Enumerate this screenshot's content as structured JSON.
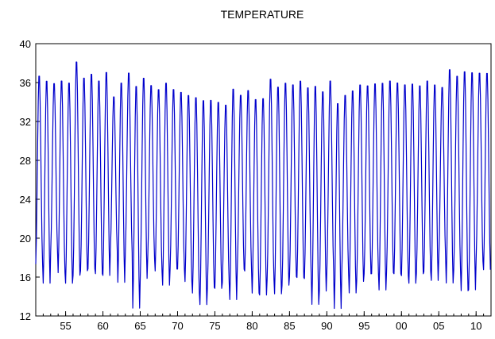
{
  "chart_data": {
    "type": "line",
    "title": "TEMPERATURE",
    "xlabel": "",
    "ylabel": "",
    "x_domain": [
      1951,
      2012
    ],
    "x_ticks": [
      1955,
      1960,
      1965,
      1970,
      1975,
      1980,
      1985,
      1990,
      1995,
      2000,
      2005,
      2010
    ],
    "x_tick_labels": [
      "55",
      "60",
      "65",
      "70",
      "75",
      "80",
      "85",
      "90",
      "95",
      "00",
      "05",
      "10"
    ],
    "ylim": [
      12,
      40
    ],
    "y_ticks": [
      12,
      16,
      20,
      24,
      28,
      32,
      36,
      40
    ],
    "y_tick_labels": [
      "12",
      "16",
      "20",
      "24",
      "28",
      "32",
      "36",
      "40"
    ],
    "frequency": "monthly",
    "series": [
      {
        "color": "#0000cc",
        "x_start": 1951,
        "annual_peaks": [
          37.0,
          36.5,
          36.2,
          36.5,
          36.3,
          38.5,
          36.8,
          37.2,
          36.5,
          37.4,
          34.8,
          36.3,
          37.3,
          36.0,
          36.8,
          36.0,
          35.6,
          36.3,
          35.6,
          35.3,
          35.0,
          34.8,
          34.5,
          34.5,
          34.3,
          34.0,
          35.7,
          35.0,
          35.5,
          34.6,
          34.7,
          36.7,
          35.9,
          36.3,
          36.1,
          36.5,
          35.8,
          36.0,
          35.4,
          36.5,
          34.2,
          35.0,
          35.5,
          36.1,
          36.0,
          36.2,
          36.3,
          36.5,
          36.3,
          36.1,
          36.2,
          36.0,
          36.5,
          36.1,
          35.8,
          37.7,
          37.0,
          37.5,
          37.4,
          37.3,
          37.3
        ],
        "annual_troughs": [
          17.0,
          15.0,
          18.3,
          16.1,
          15.0,
          15.8,
          16.3,
          16.5,
          16.0,
          15.8,
          18.5,
          15.1,
          18.2,
          12.4,
          15.5,
          17.6,
          16.3,
          14.8,
          16.5,
          16.5,
          15.2,
          14.0,
          12.8,
          14.6,
          14.5,
          15.1,
          13.3,
          16.5,
          16.3,
          14.0,
          13.8,
          15.4,
          13.9,
          14.8,
          15.7,
          15.6,
          15.5,
          12.8,
          14.2,
          16.2,
          12.4,
          16.1,
          14.0,
          15.2,
          16.0,
          16.0,
          14.3,
          16.1,
          16.0,
          15.8,
          15.0,
          16.0,
          16.2,
          15.3,
          17.6,
          15.0,
          16.3,
          14.2,
          14.3,
          17.3,
          16.4
        ]
      }
    ]
  }
}
